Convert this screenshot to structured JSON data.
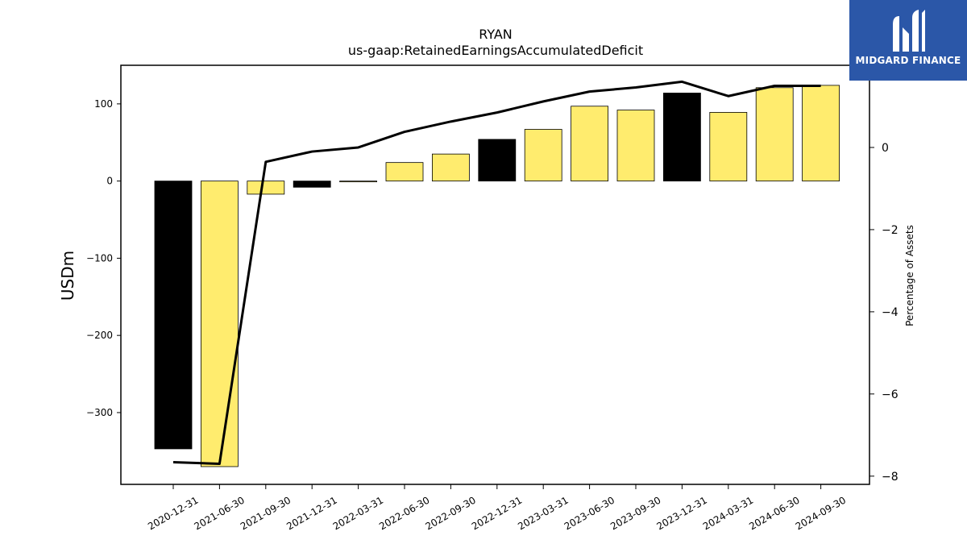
{
  "chart_data": {
    "type": "bar",
    "title": "RYAN",
    "subtitle": "us-gaap:RetainedEarningsAccumulatedDeficit",
    "ylabel": "USDm",
    "y2label": "Percentage of Assets",
    "categories": [
      "2020-12-31",
      "2021-06-30",
      "2021-09-30",
      "2021-12-31",
      "2022-03-31",
      "2022-06-30",
      "2022-09-30",
      "2022-12-31",
      "2023-03-31",
      "2023-06-30",
      "2023-09-30",
      "2023-12-31",
      "2024-03-31",
      "2024-06-30",
      "2024-09-30"
    ],
    "series": [
      {
        "type": "bar",
        "values": [
          -347,
          -370,
          -17,
          -8,
          -1,
          24,
          35,
          54,
          67,
          97,
          92,
          114,
          89,
          121,
          124
        ],
        "colors": [
          "#000000",
          "#ffec6e",
          "#ffec6e",
          "#000000",
          "#ffec6e",
          "#ffec6e",
          "#ffec6e",
          "#000000",
          "#ffec6e",
          "#ffec6e",
          "#ffec6e",
          "#000000",
          "#ffec6e",
          "#ffec6e",
          "#ffec6e"
        ]
      },
      {
        "type": "line",
        "axis": "right",
        "values": [
          -7.66,
          -7.7,
          -0.35,
          -0.1,
          0.0,
          0.38,
          0.63,
          0.85,
          1.12,
          1.36,
          1.46,
          1.6,
          1.25,
          1.5,
          1.5
        ],
        "color": "#000000"
      }
    ],
    "ylim": [
      -393,
      150
    ],
    "yticks": [
      -300,
      -200,
      -100,
      0,
      100
    ],
    "y2lim": [
      -8.2,
      2.0
    ],
    "y2ticks": [
      -8,
      -6,
      -4,
      -2,
      0
    ],
    "grid": false
  },
  "logo": {
    "text": "MIDGARD FINANCE",
    "background": "#2b57a8"
  }
}
